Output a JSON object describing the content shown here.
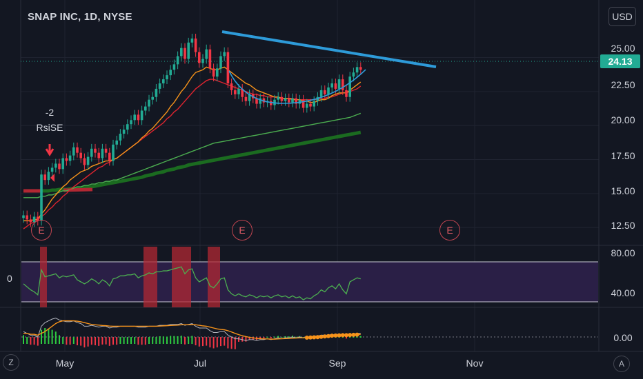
{
  "header": {
    "title": "SNAP INC, 1D, NYSE",
    "currency": "USD"
  },
  "last_price": "24.13",
  "colors": {
    "bg": "#131722",
    "up": "#22ab94",
    "down": "#f23645",
    "blue_line": "#2e9bd9",
    "ema_fast": "#f7931a",
    "ema_slow": "#e0242f",
    "sma_light": "#4caf50",
    "sma_dark": "#1b6b20",
    "rsi_fill": "#2a1f46",
    "rsi_line": "#4caf50",
    "highlight": "#b22833"
  },
  "earnings_label": "E",
  "annotation": {
    "line1": "-2",
    "line2": "RsiSE"
  },
  "rsi_zero_label": "0",
  "corner": {
    "left": "Z",
    "right": "A"
  },
  "chart_data": {
    "type": "line",
    "price_axis": {
      "ticks": [
        "25.00",
        "22.50",
        "20.00",
        "17.50",
        "15.00",
        "12.50"
      ],
      "ylim": [
        11.5,
        27
      ]
    },
    "rsi_axis": {
      "ticks": [
        "80.00",
        "40.00"
      ]
    },
    "macd_axis": {
      "ticks": [
        "0.00"
      ]
    },
    "x_ticks": [
      "May",
      "Jul",
      "Sep",
      "Nov"
    ],
    "series": [
      {
        "name": "close",
        "values": [
          13.4,
          13.1,
          12.9,
          13.3,
          13.0,
          16.4,
          16.0,
          16.6,
          16.9,
          17.2,
          16.8,
          17.6,
          17.4,
          17.8,
          18.4,
          18.0,
          17.6,
          17.1,
          17.7,
          18.3,
          18.0,
          17.6,
          18.3,
          18.0,
          17.4,
          18.6,
          18.9,
          19.4,
          19.7,
          20.1,
          20.4,
          20.8,
          20.4,
          21.1,
          21.4,
          21.9,
          22.1,
          22.7,
          23.1,
          23.4,
          23.7,
          24.1,
          24.5,
          25.1,
          25.7,
          24.9,
          26.1,
          26.4,
          25.4,
          24.6,
          24.9,
          25.6,
          24.2,
          23.6,
          24.2,
          25.1,
          25.4,
          23.1,
          22.6,
          22.3,
          22.7,
          22.1,
          21.8,
          22.3,
          22.0,
          21.6,
          22.0,
          21.7,
          21.8,
          21.5,
          21.9,
          22.1,
          21.8,
          22.0,
          21.7,
          22.0,
          21.6,
          21.9,
          21.3,
          21.6,
          21.4,
          21.8,
          22.1,
          22.6,
          22.3,
          22.8,
          23.1,
          22.7,
          23.4,
          22.6,
          22.1,
          23.6,
          23.9,
          24.3,
          24.1
        ]
      },
      {
        "name": "ema_fast",
        "values": [
          13.0,
          13.0,
          13.0,
          13.1,
          13.1,
          13.5,
          13.8,
          14.2,
          14.6,
          14.9,
          15.2,
          15.5,
          15.7,
          16.0,
          16.2,
          16.4,
          16.6,
          16.7,
          16.8,
          17.0,
          17.1,
          17.2,
          17.3,
          17.4,
          17.4,
          17.5,
          17.6,
          17.8,
          18.0,
          18.2,
          18.4,
          18.6,
          18.8,
          19.1,
          19.3,
          19.6,
          19.8,
          20.1,
          20.4,
          20.7,
          21.0,
          21.4,
          21.7,
          22.1,
          22.5,
          22.8,
          23.2,
          23.6,
          23.9,
          24.0,
          24.1,
          24.3,
          24.2,
          24.1,
          24.1,
          24.2,
          24.3,
          24.1,
          23.9,
          23.7,
          23.5,
          23.3,
          23.1,
          23.0,
          22.8,
          22.6,
          22.5,
          22.4,
          22.3,
          22.2,
          22.1,
          22.1,
          22.0,
          22.0,
          22.0,
          21.9,
          21.9,
          21.9,
          21.8,
          21.8,
          21.7,
          21.7,
          21.8,
          21.9,
          21.9,
          22.0,
          22.2,
          22.3,
          22.4,
          22.4,
          22.4,
          22.6,
          22.8,
          23.0,
          23.2
        ]
      },
      {
        "name": "ema_slow",
        "values": [
          12.4,
          12.6,
          12.8,
          12.9,
          13.1,
          13.3,
          13.5,
          13.8,
          14.0,
          14.3,
          14.5,
          14.8,
          15.0,
          15.3,
          15.5,
          15.7,
          15.9,
          16.1,
          16.3,
          16.5,
          16.7,
          16.9,
          17.0,
          17.2,
          17.3,
          17.5,
          17.6,
          17.8,
          18.0,
          18.2,
          18.4,
          18.6,
          18.8,
          19.0,
          19.2,
          19.4,
          19.6,
          19.8,
          20.0,
          20.2,
          20.5,
          20.7,
          21.0,
          21.2,
          21.5,
          21.8,
          22.1,
          22.4,
          22.7,
          22.9,
          23.1,
          23.3,
          23.4,
          23.4,
          23.3,
          23.2,
          23.1,
          23.0,
          22.9,
          22.8,
          22.7,
          22.6,
          22.5,
          22.4,
          22.3,
          22.3,
          22.2,
          22.2,
          22.1,
          22.1,
          22.1,
          22.0,
          22.0,
          22.0,
          22.0,
          22.0,
          21.9,
          21.9,
          21.9,
          21.9,
          21.9,
          21.9,
          21.9,
          22.0,
          22.0,
          22.1,
          22.1,
          22.2,
          22.3,
          22.4,
          22.4,
          22.5,
          22.6,
          22.7,
          22.9
        ]
      },
      {
        "name": "sma_light",
        "values": [
          14.7,
          14.7,
          14.7,
          14.7,
          14.7,
          14.8,
          14.8,
          14.9,
          14.9,
          15.0,
          15.1,
          15.2,
          15.2,
          15.3,
          15.4,
          15.5,
          15.5,
          15.6,
          15.6,
          15.7,
          15.7,
          15.8,
          15.8,
          15.9,
          15.9,
          16.0,
          16.0,
          16.1,
          16.2,
          16.3,
          16.4,
          16.5,
          16.6,
          16.7,
          16.8,
          16.9,
          17.0,
          17.1,
          17.2,
          17.3,
          17.4,
          17.5,
          17.6,
          17.7,
          17.8,
          17.9,
          18.0,
          18.1,
          18.2,
          18.3,
          18.4,
          18.5,
          18.6,
          18.7,
          18.75,
          18.8,
          18.85,
          18.9,
          18.95,
          19.0,
          19.05,
          19.1,
          19.15,
          19.2,
          19.25,
          19.3,
          19.35,
          19.4,
          19.45,
          19.5,
          19.55,
          19.6,
          19.65,
          19.7,
          19.75,
          19.8,
          19.85,
          19.9,
          19.95,
          20.0,
          20.05,
          20.1,
          20.15,
          20.2,
          20.25,
          20.3,
          20.35,
          20.4,
          20.45,
          20.5,
          20.55,
          20.6,
          20.7,
          20.8,
          20.9
        ]
      },
      {
        "name": "sma_dark",
        "values": [
          15.2,
          15.2,
          15.2,
          15.2,
          15.2,
          15.2,
          15.2,
          15.2,
          15.25,
          15.25,
          15.3,
          15.3,
          15.3,
          15.35,
          15.35,
          15.4,
          15.4,
          15.45,
          15.45,
          15.5,
          15.55,
          15.6,
          15.65,
          15.7,
          15.75,
          15.8,
          15.85,
          15.9,
          15.95,
          16.0,
          16.05,
          16.1,
          16.15,
          16.2,
          16.3,
          16.35,
          16.4,
          16.5,
          16.55,
          16.6,
          16.7,
          16.75,
          16.8,
          16.9,
          16.95,
          17.0,
          17.1,
          17.15,
          17.2,
          17.25,
          17.3,
          17.35,
          17.4,
          17.45,
          17.5,
          17.55,
          17.6,
          17.65,
          17.7,
          17.75,
          17.8,
          17.85,
          17.9,
          17.95,
          18.0,
          18.05,
          18.1,
          18.15,
          18.2,
          18.25,
          18.3,
          18.35,
          18.4,
          18.45,
          18.5,
          18.55,
          18.6,
          18.65,
          18.7,
          18.75,
          18.8,
          18.85,
          18.9,
          18.95,
          19.0,
          19.05,
          19.1,
          19.15,
          19.2,
          19.25,
          19.3,
          19.35,
          19.4,
          19.45,
          19.5
        ]
      }
    ],
    "rsi": [
      58,
      55,
      52,
      50,
      47,
      72,
      65,
      66,
      67,
      68,
      64,
      66,
      65,
      66,
      67,
      62,
      60,
      58,
      60,
      63,
      61,
      58,
      62,
      60,
      56,
      63,
      64,
      66,
      66,
      67,
      67,
      68,
      64,
      66,
      67,
      69,
      68,
      70,
      70,
      71,
      71,
      72,
      73,
      74,
      75,
      68,
      72,
      73,
      64,
      60,
      62,
      64,
      56,
      54,
      58,
      63,
      64,
      52,
      48,
      46,
      48,
      46,
      45,
      47,
      46,
      44,
      46,
      45,
      46,
      44,
      46,
      47,
      45,
      46,
      44,
      46,
      44,
      45,
      42,
      44,
      43,
      46,
      48,
      52,
      50,
      54,
      56,
      53,
      58,
      52,
      48,
      60,
      62,
      64,
      63
    ],
    "macd": [
      0.3,
      0.2,
      0.1,
      0.1,
      0.0,
      0.6,
      0.8,
      0.9,
      1.0,
      1.05,
      0.95,
      0.9,
      0.85,
      0.85,
      0.9,
      0.8,
      0.75,
      0.6,
      0.6,
      0.65,
      0.6,
      0.55,
      0.6,
      0.6,
      0.5,
      0.55,
      0.55,
      0.6,
      0.6,
      0.6,
      0.6,
      0.6,
      0.55,
      0.55,
      0.55,
      0.6,
      0.6,
      0.6,
      0.65,
      0.65,
      0.65,
      0.7,
      0.7,
      0.7,
      0.75,
      0.65,
      0.7,
      0.75,
      0.6,
      0.5,
      0.5,
      0.5,
      0.35,
      0.25,
      0.25,
      0.3,
      0.3,
      0.1,
      0.0,
      -0.1,
      -0.1,
      -0.15,
      -0.2,
      -0.15,
      -0.15,
      -0.2,
      -0.15,
      -0.15,
      -0.1,
      -0.15,
      -0.1,
      -0.05,
      -0.1,
      -0.05,
      -0.05,
      0.0,
      -0.05,
      0.0,
      -0.05,
      0.0,
      0.0,
      0.05,
      0.05,
      0.1,
      0.1,
      0.1,
      0.15,
      0.1,
      0.15,
      0.1,
      0.05,
      0.15,
      0.15,
      0.2,
      0.2
    ],
    "signal": [
      0.2,
      0.2,
      0.15,
      0.15,
      0.1,
      0.2,
      0.3,
      0.45,
      0.6,
      0.75,
      0.85,
      0.9,
      0.9,
      0.9,
      0.9,
      0.88,
      0.85,
      0.8,
      0.75,
      0.7,
      0.68,
      0.66,
      0.64,
      0.63,
      0.61,
      0.6,
      0.6,
      0.6,
      0.6,
      0.6,
      0.6,
      0.6,
      0.6,
      0.6,
      0.6,
      0.6,
      0.6,
      0.6,
      0.61,
      0.62,
      0.63,
      0.64,
      0.65,
      0.66,
      0.68,
      0.68,
      0.68,
      0.69,
      0.68,
      0.65,
      0.62,
      0.6,
      0.55,
      0.5,
      0.45,
      0.42,
      0.4,
      0.35,
      0.28,
      0.2,
      0.13,
      0.07,
      0.02,
      -0.02,
      -0.05,
      -0.08,
      -0.1,
      -0.11,
      -0.11,
      -0.12,
      -0.12,
      -0.11,
      -0.1,
      -0.09,
      -0.08,
      -0.07,
      -0.06,
      -0.05,
      -0.05,
      -0.04,
      -0.03,
      -0.02,
      -0.01,
      0.01,
      0.03,
      0.05,
      0.07,
      0.08,
      0.09,
      0.1,
      0.1,
      0.11,
      0.12,
      0.13,
      0.15
    ]
  }
}
